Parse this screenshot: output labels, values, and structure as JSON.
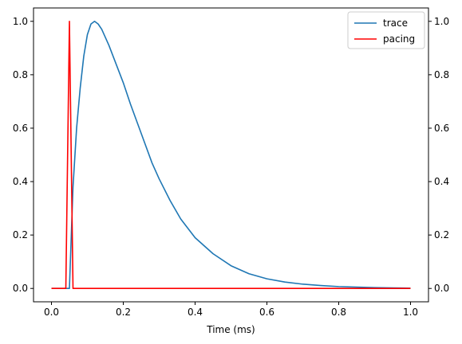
{
  "chart_data": {
    "type": "line",
    "title": "",
    "xlabel": "Time (ms)",
    "ylabel": "",
    "xlim": [
      -0.05,
      1.05
    ],
    "ylim": [
      -0.05,
      1.05
    ],
    "xticks": [
      0.0,
      0.2,
      0.4,
      0.6,
      0.8,
      1.0
    ],
    "xtick_labels": [
      "0.0",
      "0.2",
      "0.4",
      "0.6",
      "0.8",
      "1.0"
    ],
    "yticks": [
      0.0,
      0.2,
      0.4,
      0.6,
      0.8,
      1.0
    ],
    "ytick_labels": [
      "0.0",
      "0.2",
      "0.4",
      "0.6",
      "0.8",
      "1.0"
    ],
    "right_yticks": [
      0.0,
      0.2,
      0.4,
      0.6,
      0.8,
      1.0
    ],
    "right_ytick_labels": [
      "0.0",
      "0.2",
      "0.4",
      "0.6",
      "0.8",
      "1.0"
    ],
    "grid": false,
    "legend": "top-right",
    "series": [
      {
        "name": "trace",
        "color": "#1f77b4",
        "x": [
          0.0,
          0.04,
          0.05,
          0.06,
          0.07,
          0.08,
          0.09,
          0.1,
          0.11,
          0.12,
          0.13,
          0.14,
          0.16,
          0.18,
          0.2,
          0.22,
          0.25,
          0.28,
          0.3,
          0.33,
          0.36,
          0.4,
          0.45,
          0.5,
          0.55,
          0.6,
          0.65,
          0.7,
          0.75,
          0.8,
          0.85,
          0.9,
          0.95,
          1.0
        ],
        "y": [
          0.0,
          0.0,
          0.0,
          0.38,
          0.6,
          0.75,
          0.87,
          0.95,
          0.99,
          1.0,
          0.99,
          0.97,
          0.91,
          0.84,
          0.77,
          0.69,
          0.58,
          0.47,
          0.41,
          0.33,
          0.26,
          0.19,
          0.13,
          0.085,
          0.055,
          0.036,
          0.024,
          0.016,
          0.011,
          0.007,
          0.005,
          0.003,
          0.002,
          0.001
        ]
      },
      {
        "name": "pacing",
        "color": "#ff0000",
        "x": [
          0.0,
          0.04,
          0.05,
          0.06,
          0.065,
          1.0
        ],
        "y": [
          0.0,
          0.0,
          1.0,
          0.0,
          0.0,
          0.0
        ]
      }
    ]
  }
}
